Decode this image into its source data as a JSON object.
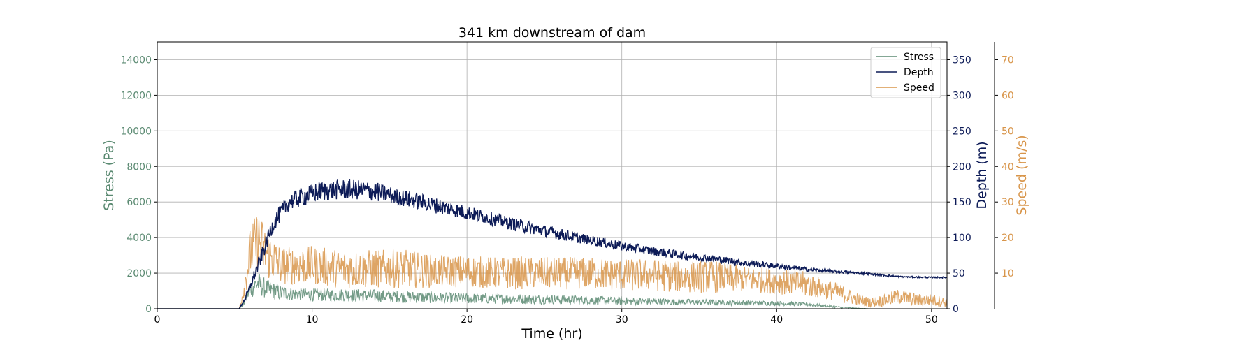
{
  "chart_data": {
    "type": "line",
    "title": "341 km downstream of dam",
    "xlabel": "Time (hr)",
    "xlim": [
      0,
      51
    ],
    "xticks": [
      0,
      10,
      20,
      30,
      40,
      50
    ],
    "grid": true,
    "legend_placement": "top-right",
    "axes": {
      "stress": {
        "label": "Stress (Pa)",
        "color": "#5b8a72",
        "ylim": [
          0,
          15000
        ],
        "ticks": [
          0,
          2000,
          4000,
          6000,
          8000,
          10000,
          12000,
          14000
        ]
      },
      "depth": {
        "label": "Depth (m)",
        "color": "#0d1b57",
        "ylim": [
          0,
          375
        ],
        "ticks": [
          0,
          50,
          100,
          150,
          200,
          250,
          300,
          350
        ]
      },
      "speed": {
        "label": "Speed (m/s)",
        "color": "#d8954a",
        "ylim": [
          0,
          75
        ],
        "ticks": [
          10,
          20,
          30,
          40,
          50,
          60,
          70
        ]
      }
    },
    "series": [
      {
        "name": "Stress",
        "axis": "stress",
        "color": "#5b8a72",
        "x": [
          0,
          5.3,
          5.6,
          6,
          6.5,
          7,
          8,
          9,
          10,
          12,
          14,
          16,
          18,
          20,
          22,
          24,
          26,
          28,
          30,
          32,
          34,
          36,
          38,
          40,
          42,
          43,
          44,
          45,
          46,
          48,
          50,
          51
        ],
        "y": [
          0,
          0,
          300,
          1000,
          1300,
          1000,
          800,
          750,
          700,
          700,
          650,
          600,
          550,
          520,
          500,
          480,
          460,
          420,
          380,
          360,
          340,
          320,
          300,
          280,
          220,
          150,
          80,
          30,
          0,
          0,
          0,
          0
        ],
        "noise": [
          0,
          0,
          150,
          600,
          700,
          600,
          500,
          400,
          400,
          400,
          400,
          380,
          350,
          330,
          320,
          310,
          300,
          270,
          250,
          220,
          200,
          180,
          160,
          140,
          120,
          80,
          50,
          20,
          0,
          0,
          0,
          0
        ]
      },
      {
        "name": "Depth",
        "axis": "depth",
        "color": "#0d1b57",
        "x": [
          0,
          5.3,
          5.8,
          6.5,
          7.5,
          8.5,
          9.5,
          10.5,
          12,
          13,
          14,
          15,
          16,
          18,
          20,
          22,
          24,
          26,
          28,
          30,
          32,
          34,
          36,
          38,
          40,
          42,
          44,
          46,
          48,
          50,
          51
        ],
        "y": [
          0,
          0,
          20,
          60,
          120,
          150,
          158,
          165,
          168,
          167,
          165,
          160,
          155,
          145,
          135,
          124,
          114,
          105,
          96,
          88,
          81,
          75,
          70,
          64,
          60,
          55,
          52,
          49,
          45,
          44,
          44
        ],
        "noise": [
          0,
          0,
          5,
          10,
          12,
          12,
          14,
          14,
          14,
          14,
          14,
          12,
          12,
          11,
          10,
          9,
          9,
          8,
          7,
          7,
          6,
          6,
          5,
          5,
          4,
          3,
          2,
          1.5,
          1,
          1,
          1
        ]
      },
      {
        "name": "Speed",
        "axis": "speed",
        "color": "#d8954a",
        "x": [
          0,
          5.3,
          5.6,
          6,
          6.5,
          7,
          8,
          9,
          10,
          12,
          14,
          16,
          18,
          20,
          22,
          24,
          26,
          28,
          30,
          32,
          34,
          36,
          38,
          40,
          42,
          43,
          44,
          45,
          46,
          47,
          48,
          49,
          50,
          51
        ],
        "y": [
          0,
          0,
          5,
          14,
          18,
          14,
          11,
          11,
          11,
          10,
          10,
          10,
          9.5,
          9.5,
          9,
          9,
          9,
          9,
          8.5,
          8.5,
          8,
          8,
          7.5,
          7,
          6,
          5,
          4,
          2.5,
          1.5,
          2,
          3,
          2,
          2,
          1.5
        ],
        "noise": [
          0,
          0,
          3,
          8,
          9,
          8,
          6,
          6,
          6,
          6,
          6,
          6,
          5,
          5,
          5,
          5,
          5,
          5,
          5,
          5,
          5,
          5,
          4,
          4,
          4,
          3,
          3,
          2,
          1.5,
          2,
          2.5,
          2,
          2,
          1.5
        ]
      }
    ]
  }
}
